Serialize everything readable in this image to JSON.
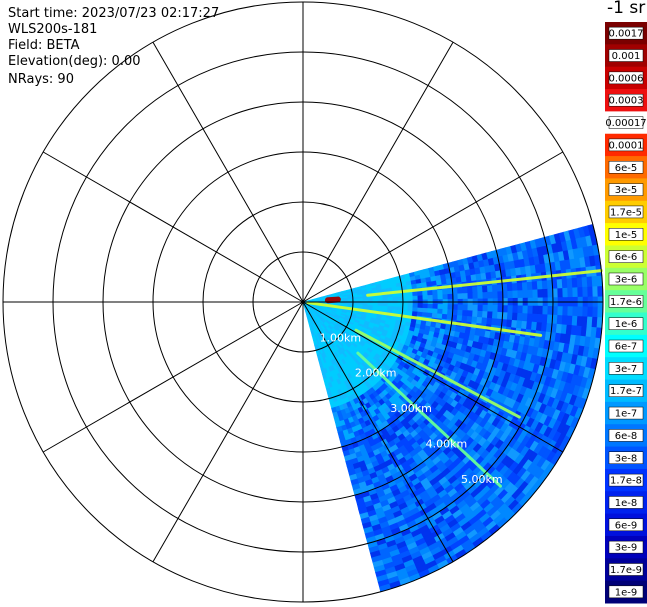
{
  "header": {
    "start_time": "Start time: 2023/07/23 02:17:27",
    "instrument": "WLS200s-181",
    "field": "Field: BETA",
    "elevation": "Elevation(deg): 0.00",
    "nrays": "NRays: 90"
  },
  "colorbar": {
    "unit_label": "-1 sr",
    "ticks": [
      "0.0017",
      "0.001",
      "0.0006",
      "0.0003",
      "0.00017",
      "0.0001",
      "6e-5",
      "3e-5",
      "1.7e-5",
      "1e-5",
      "6e-6",
      "3e-6",
      "1.7e-6",
      "1e-6",
      "6e-7",
      "3e-7",
      "1.7e-7",
      "1e-7",
      "6e-8",
      "3e-8",
      "1.7e-8",
      "1e-8",
      "6e-9",
      "3e-9",
      "1.7e-9",
      "1e-9"
    ],
    "colors": [
      "#7a0000",
      "#a00000",
      "#c80000",
      "#ee1010",
      "#ffffff",
      "#ff2a00",
      "#ff6a00",
      "#ff9a00",
      "#ffcc00",
      "#ffff00",
      "#ccff33",
      "#99ff66",
      "#66ff99",
      "#33ffcc",
      "#00ffff",
      "#00ddff",
      "#00bbff",
      "#0099ff",
      "#0077ff",
      "#0055ff",
      "#0033ff",
      "#0022ee",
      "#0011dd",
      "#0000bb",
      "#000099",
      "#000077"
    ]
  },
  "chart_data": {
    "type": "heatmap",
    "projection": "polar PPI",
    "range_rings_km": [
      "1.00km",
      "2.00km",
      "3.00km",
      "4.00km",
      "5.00km"
    ],
    "ring_count": 6,
    "spoke_step_deg": 30,
    "sector_start_deg": 75,
    "sector_end_deg": 165,
    "max_range_km": 6.0,
    "background_value": "1e-8",
    "features": [
      {
        "name": "near-field return",
        "azimuth_deg": 86,
        "range_km": [
          0.5,
          0.7
        ],
        "value": "0.001"
      },
      {
        "name": "streak",
        "azimuth_deg": 84,
        "range_km": [
          1.3,
          6.0
        ],
        "value": "6e-6"
      },
      {
        "name": "streak",
        "azimuth_deg": 98,
        "range_km": [
          0.1,
          4.8
        ],
        "value": "6e-6"
      },
      {
        "name": "streak",
        "azimuth_deg": 118,
        "range_km": [
          1.2,
          4.9
        ],
        "value": "3e-6"
      },
      {
        "name": "streak",
        "azimuth_deg": 133,
        "range_km": [
          1.5,
          5.4
        ],
        "value": "1.7e-6"
      }
    ]
  }
}
